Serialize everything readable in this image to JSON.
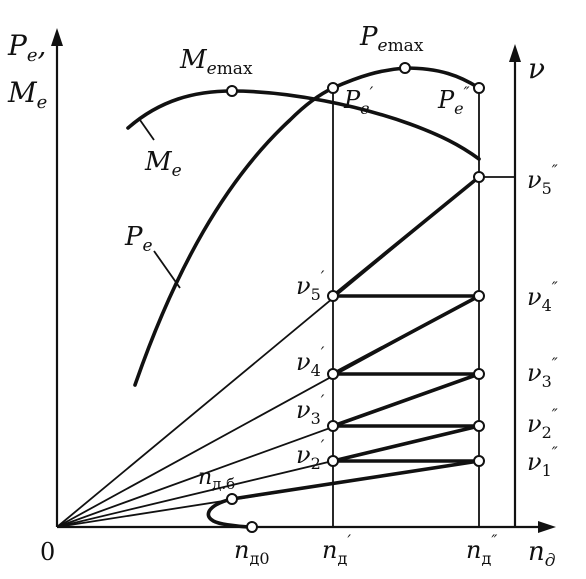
{
  "labels": {
    "y_axis_left": {
      "main": "P",
      "sub": "e",
      "tail": ","
    },
    "y_axis_left_2": {
      "main": "M",
      "sub": "e"
    },
    "y_axis_right": "ν",
    "x_axis": {
      "main": "n",
      "sub": "д"
    },
    "origin": "0",
    "M_e_max": {
      "main": "M",
      "sub": "e",
      "sub2": "max"
    },
    "P_e_max": {
      "main": "P",
      "sub": "e",
      "sub2": "max"
    },
    "P_e_prime": {
      "main": "P",
      "sub": "e",
      "sup": "′"
    },
    "P_e_dprime": {
      "main": "P",
      "sub": "e",
      "sup": "″"
    },
    "M_e_curve": {
      "main": "M",
      "sub": "e"
    },
    "P_e_curve": {
      "main": "P",
      "sub": "e"
    },
    "n_d_b": {
      "main": "n",
      "sub": "д.б"
    },
    "n_d0": {
      "main": "n",
      "sub": "д0"
    },
    "n_d_prime": {
      "main": "n",
      "sub": "д",
      "sup": "′"
    },
    "n_d_dprime": {
      "main": "n",
      "sub": "д",
      "sup": "″"
    },
    "nu_prime": [
      {
        "main": "ν",
        "sub": "2",
        "sup": "′"
      },
      {
        "main": "ν",
        "sub": "3",
        "sup": "′"
      },
      {
        "main": "ν",
        "sub": "4",
        "sup": "′"
      },
      {
        "main": "ν",
        "sub": "5",
        "sup": "′"
      }
    ],
    "nu_dprime": [
      {
        "main": "ν",
        "sub": "1",
        "sup": "″"
      },
      {
        "main": "ν",
        "sub": "2",
        "sup": "″"
      },
      {
        "main": "ν",
        "sub": "3",
        "sup": "″"
      },
      {
        "main": "ν",
        "sub": "4",
        "sup": "″"
      },
      {
        "main": "ν",
        "sub": "5",
        "sup": "″"
      }
    ]
  },
  "colors": {
    "ink": "#111111",
    "background": "#ffffff"
  }
}
